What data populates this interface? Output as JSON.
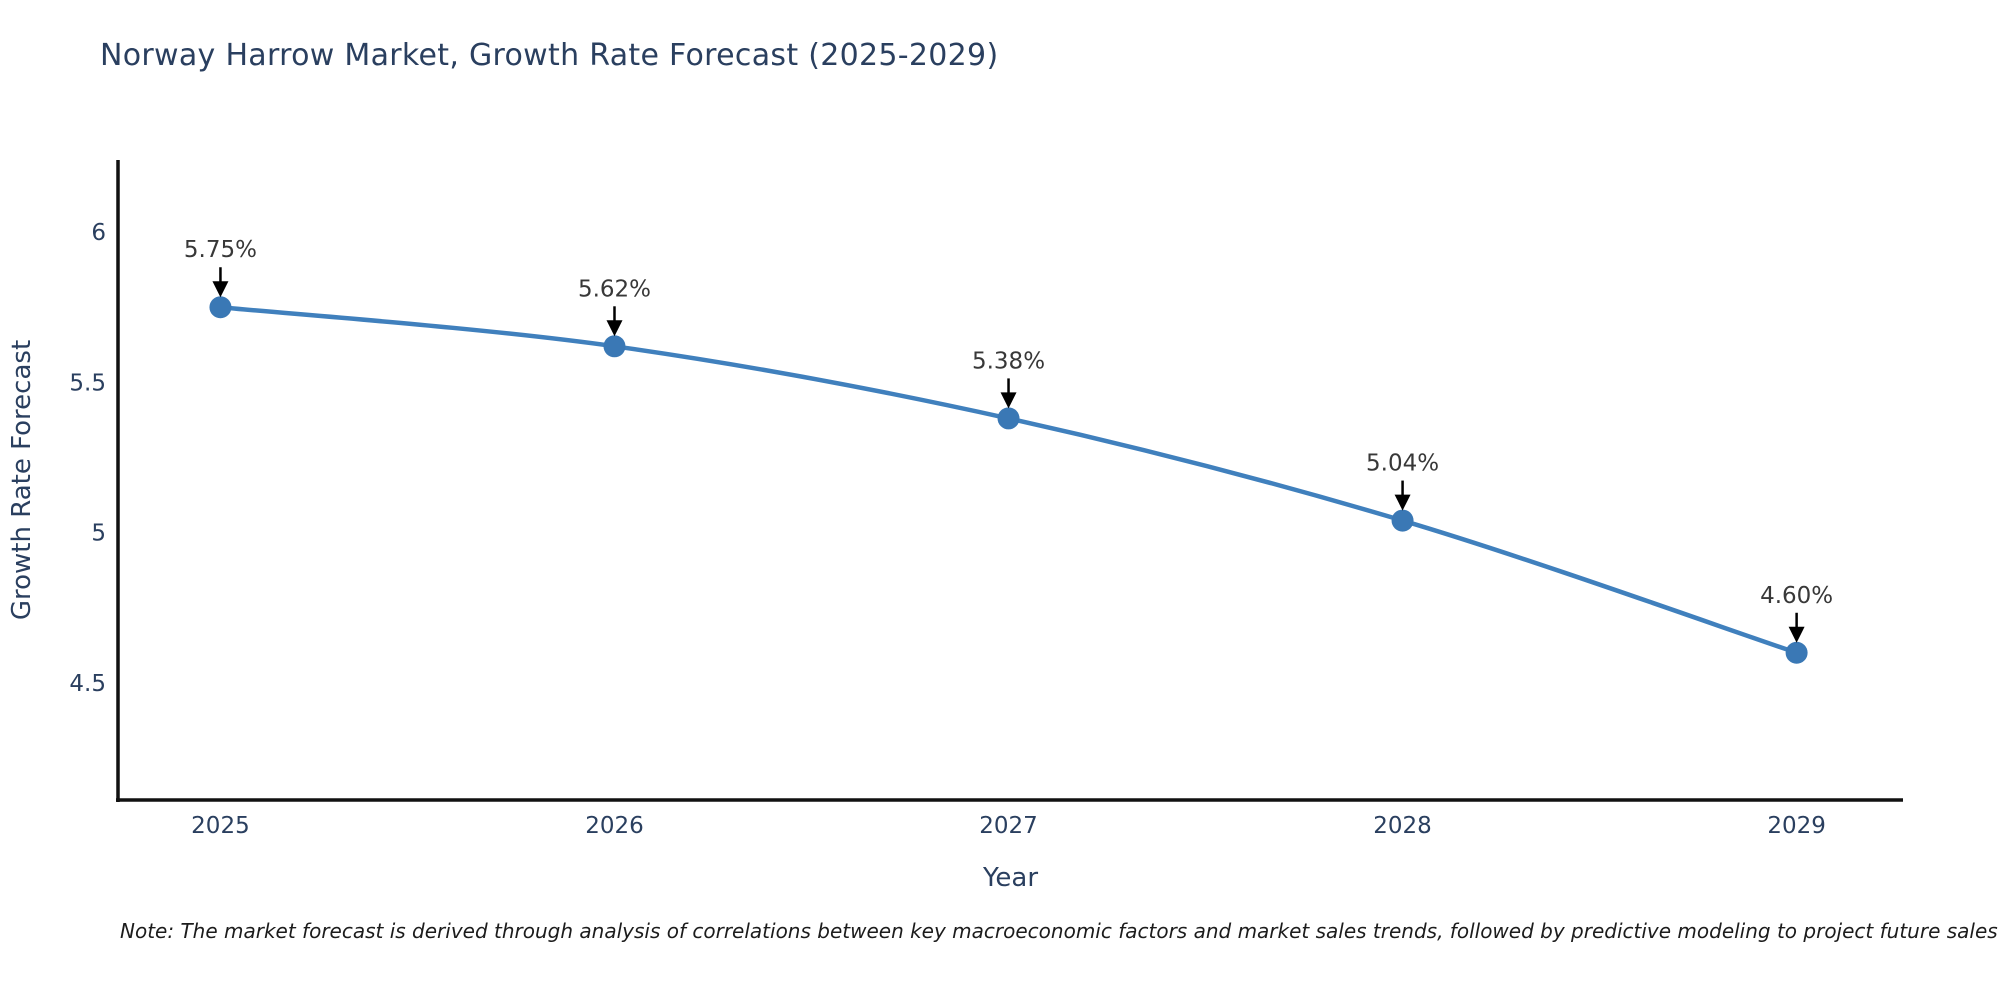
{
  "title": "Norway Harrow Market, Growth Rate Forecast (2025-2029)",
  "note": "Note: The market forecast is derived through analysis of correlations between key macroeconomic factors and market sales trends, followed by predictive modeling to project future sales",
  "chart_data": {
    "type": "line",
    "title": "Norway Harrow Market, Growth Rate Forecast (2025-2029)",
    "xlabel": "Year",
    "ylabel": "Growth Rate Forecast",
    "categories": [
      "2025",
      "2026",
      "2027",
      "2028",
      "2029"
    ],
    "x": [
      2025,
      2026,
      2027,
      2028,
      2029
    ],
    "series": [
      {
        "name": "Growth Rate Forecast",
        "values": [
          5.75,
          5.62,
          5.38,
          5.04,
          4.6
        ]
      }
    ],
    "point_labels": [
      "5.75%",
      "5.62%",
      "5.38%",
      "5.04%",
      "4.60%"
    ],
    "yticks": {
      "values": [
        4.5,
        5.0,
        5.5,
        6.0
      ],
      "labels": [
        "4.5",
        "5",
        "5.5",
        "6"
      ]
    },
    "xlim": [
      2024.74,
      2029.27
    ],
    "ylim": [
      4.11,
      6.24
    ],
    "grid": false,
    "legend": false,
    "line_shape": "spline",
    "colors": {
      "line": "#4080bd",
      "marker": "#3a78b5",
      "axis": "#111111",
      "axis_text": "#2a3f5f",
      "annotation_text": "#383838",
      "arrow": "#000000"
    }
  }
}
